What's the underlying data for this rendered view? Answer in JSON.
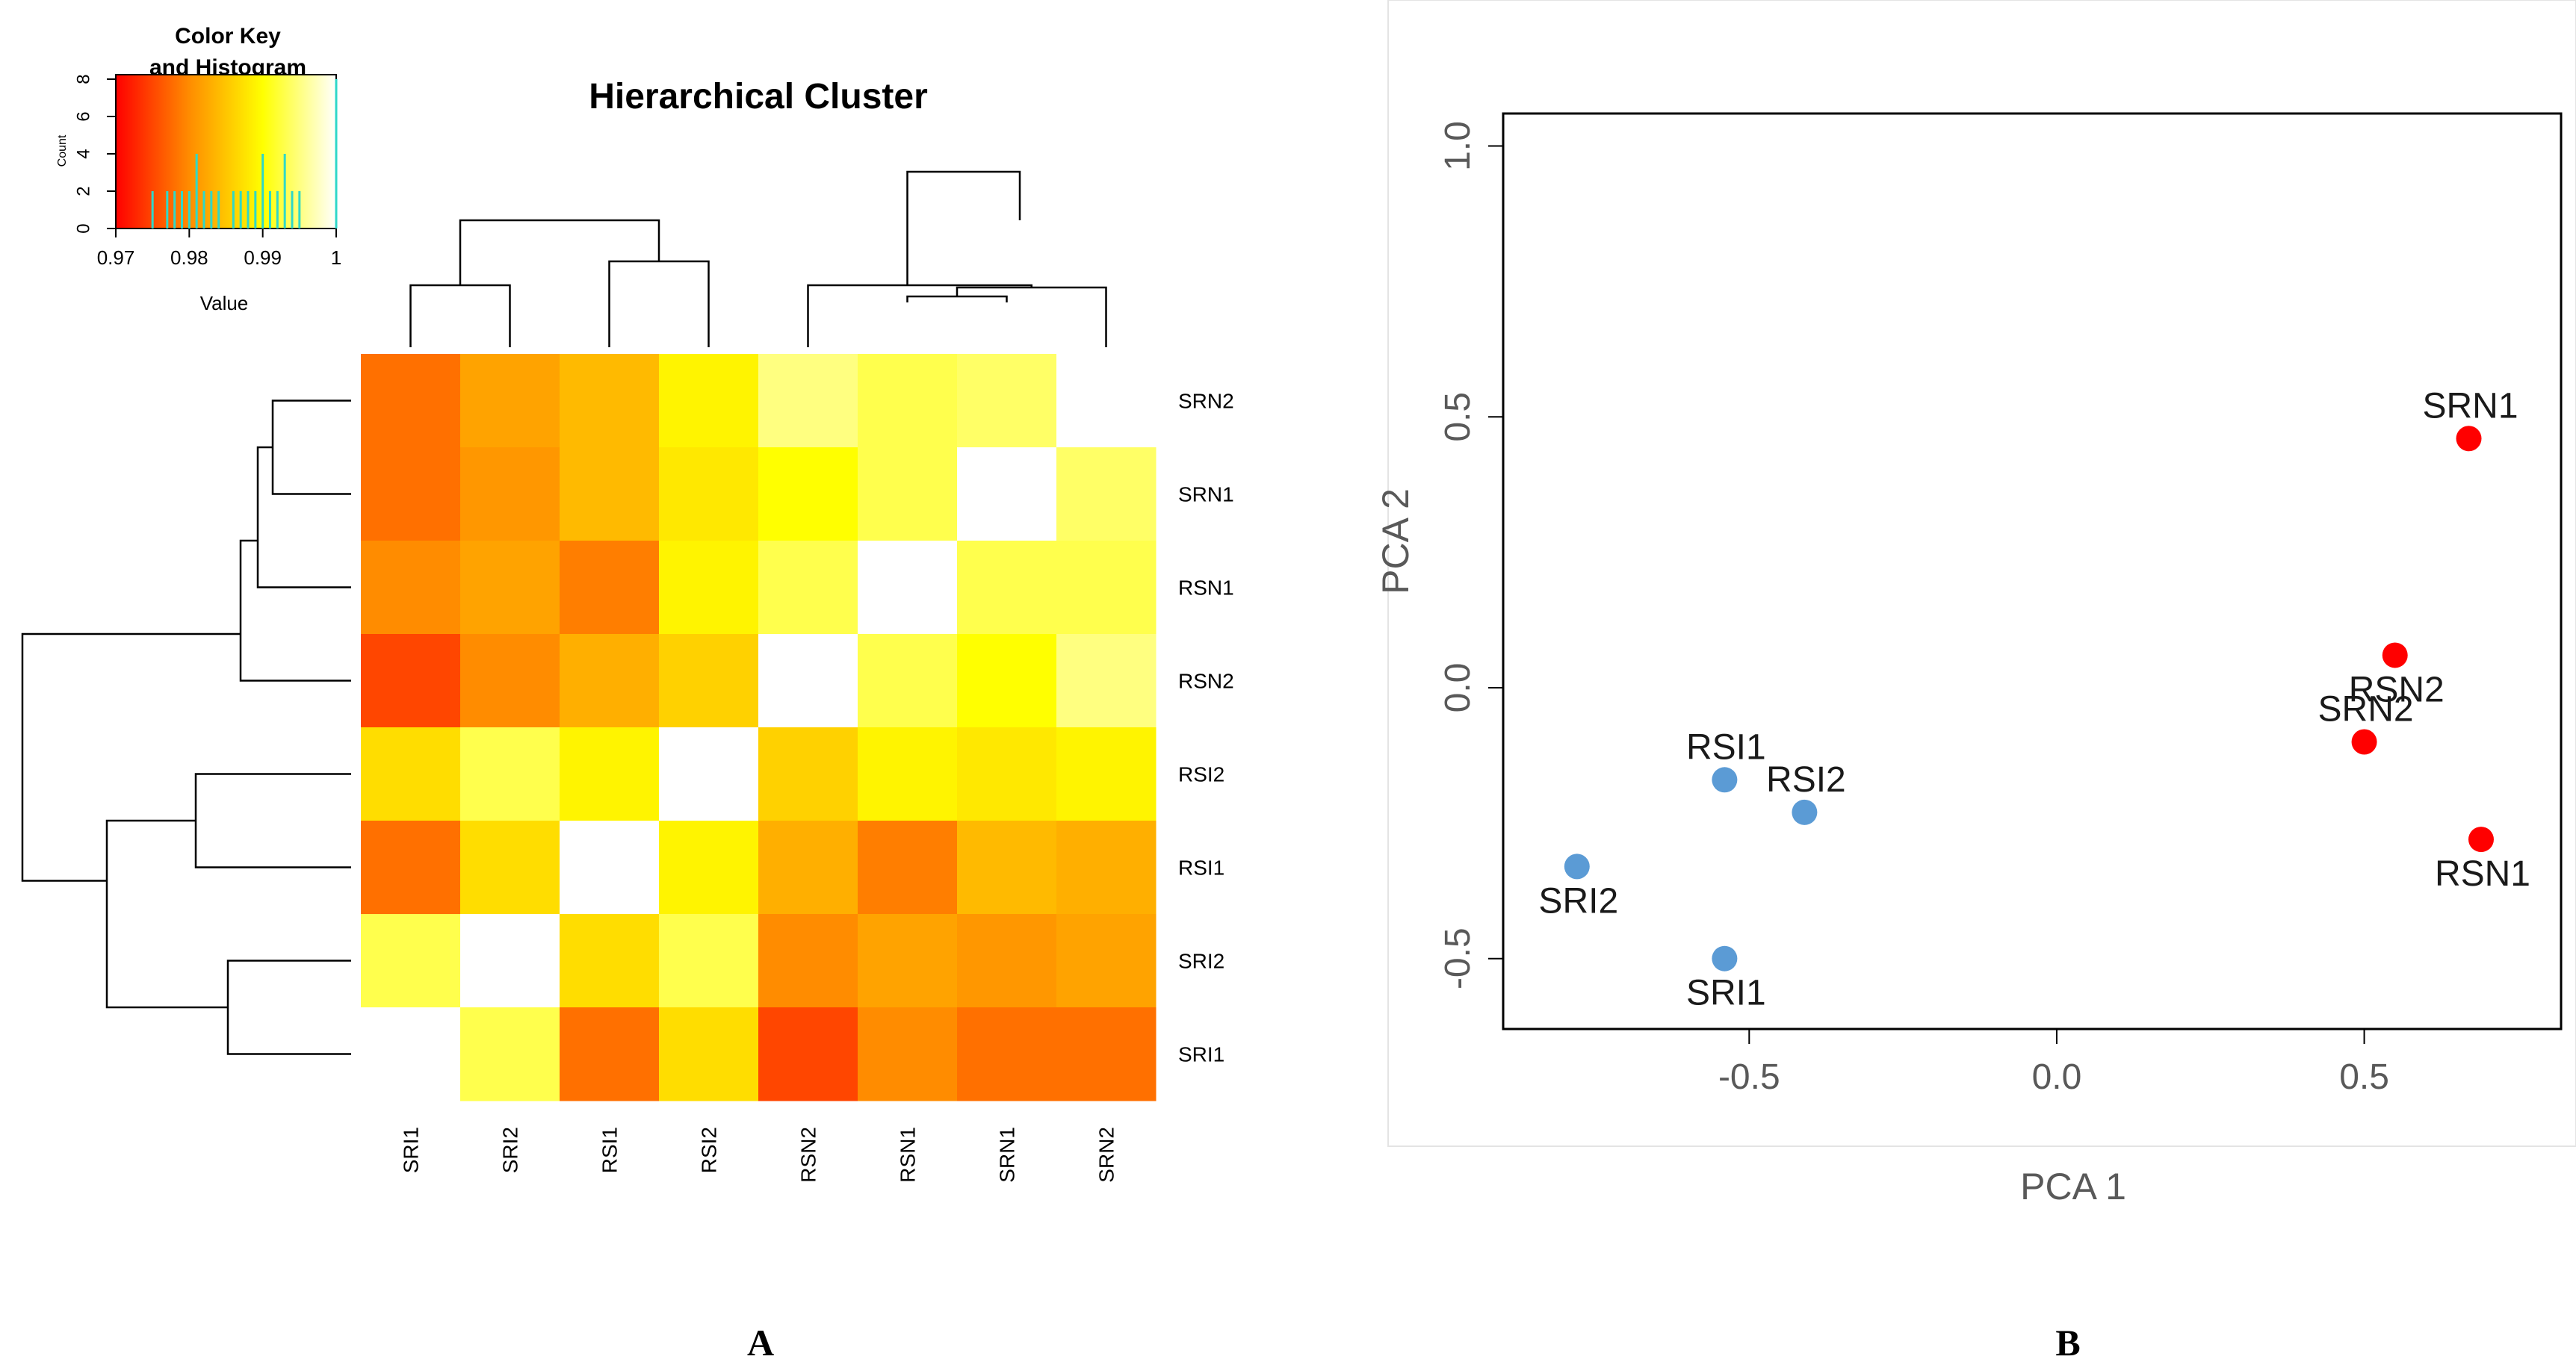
{
  "chart_data": [
    {
      "type": "heatmap",
      "title": "Hierarchical Cluster",
      "panel_label": "A",
      "rows": [
        "SRN2",
        "SRN1",
        "RSN1",
        "RSN2",
        "RSI2",
        "RSI1",
        "SRI2",
        "SRI1"
      ],
      "columns": [
        "SRI1",
        "SRI2",
        "RSI1",
        "RSI2",
        "RSN2",
        "RSN1",
        "SRN1",
        "SRN2"
      ],
      "values": [
        [
          0.978,
          0.982,
          0.984,
          0.989,
          0.995,
          0.993,
          0.994,
          1.0
        ],
        [
          0.978,
          0.981,
          0.984,
          0.988,
          0.99,
          0.993,
          1.0,
          0.994
        ],
        [
          0.98,
          0.982,
          0.979,
          0.989,
          0.993,
          1.0,
          0.993,
          0.993
        ],
        [
          0.975,
          0.98,
          0.983,
          0.986,
          1.0,
          0.993,
          0.99,
          0.995
        ],
        [
          0.987,
          0.993,
          0.989,
          1.0,
          0.986,
          0.989,
          0.988,
          0.989
        ],
        [
          0.978,
          0.987,
          1.0,
          0.989,
          0.983,
          0.979,
          0.984,
          0.983
        ],
        [
          0.993,
          1.0,
          0.987,
          0.993,
          0.98,
          0.982,
          0.981,
          0.982
        ],
        [
          1.0,
          0.993,
          0.978,
          0.987,
          0.975,
          0.98,
          0.978,
          0.978
        ]
      ],
      "color_key": {
        "title_line1": "Color Key",
        "title_line2": "and Histogram",
        "xlabel": "Value",
        "ylabel": "Count",
        "x_ticks": [
          "0.97",
          "0.98",
          "0.99",
          "1"
        ],
        "y_ticks": [
          "0",
          "2",
          "4",
          "6",
          "8"
        ],
        "range": [
          0.97,
          1.0
        ],
        "count_range": [
          0,
          8
        ],
        "colors": [
          "#ff0000",
          "#ff8c00",
          "#ffff00",
          "#ffffff"
        ],
        "histogram": [
          {
            "x": 0.975,
            "count": 2
          },
          {
            "x": 0.977,
            "count": 2
          },
          {
            "x": 0.978,
            "count": 2
          },
          {
            "x": 0.979,
            "count": 2
          },
          {
            "x": 0.98,
            "count": 2
          },
          {
            "x": 0.981,
            "count": 4
          },
          {
            "x": 0.982,
            "count": 2
          },
          {
            "x": 0.983,
            "count": 2
          },
          {
            "x": 0.984,
            "count": 2
          },
          {
            "x": 0.986,
            "count": 2
          },
          {
            "x": 0.987,
            "count": 2
          },
          {
            "x": 0.988,
            "count": 2
          },
          {
            "x": 0.989,
            "count": 2
          },
          {
            "x": 0.99,
            "count": 4
          },
          {
            "x": 0.991,
            "count": 2
          },
          {
            "x": 0.992,
            "count": 2
          },
          {
            "x": 0.993,
            "count": 4
          },
          {
            "x": 0.994,
            "count": 2
          },
          {
            "x": 0.995,
            "count": 2
          },
          {
            "x": 1.0,
            "count": 8
          }
        ]
      },
      "column_dendrogram": [
        {
          "merge": [
            "RSN1",
            "SRN1"
          ],
          "height": 0.15
        },
        {
          "merge": [
            "RSN1+SRN1",
            "SRN2"
          ],
          "height": 0.2
        },
        {
          "merge": [
            "RSN2",
            "RSN1+SRN1+SRN2"
          ],
          "height": 0.3
        },
        {
          "merge": [
            "SRI1",
            "SRI2"
          ],
          "height": 0.35
        },
        {
          "merge": [
            "RSI1",
            "RSI2"
          ],
          "height": 0.45
        },
        {
          "merge": [
            "SRI1+SRI2",
            "RSI1+RSI2"
          ],
          "height": 0.65
        },
        {
          "merge": [
            "SRI",
            "RSI",
            "RSN",
            "SRN"
          ],
          "height": 0.92
        }
      ],
      "row_dendrogram": [
        {
          "merge": [
            "SRN2",
            "SRN1"
          ],
          "height": 0.2
        },
        {
          "merge": [
            "SRN2+SRN1",
            "RSN1"
          ],
          "height": 0.25
        },
        {
          "merge": [
            "SRN2+SRN1+RSN1",
            "RSN2"
          ],
          "height": 0.32
        },
        {
          "merge": [
            "RSI2",
            "RSI1"
          ],
          "height": 0.5
        },
        {
          "merge": [
            "SRI2",
            "SRI1"
          ],
          "height": 0.4
        },
        {
          "merge": [
            "RSI",
            "SRI"
          ],
          "height": 0.75
        },
        {
          "merge": [
            "RSN",
            "SRN",
            "RSI",
            "SRI"
          ],
          "height": 1.0
        }
      ]
    },
    {
      "type": "scatter",
      "panel_label": "B",
      "xlabel": "PCA 1",
      "ylabel": "PCA 2",
      "xlim": [
        -0.9,
        0.82
      ],
      "ylim": [
        -0.63,
        1.06
      ],
      "x_ticks": [
        -0.5,
        0.0,
        0.5
      ],
      "x_tick_labels": [
        "-0.5",
        "0.0",
        "0.5"
      ],
      "y_ticks": [
        -0.5,
        0.0,
        0.5,
        1.0
      ],
      "y_tick_labels": [
        "-0.5",
        "0.0",
        "0.5",
        "1.0"
      ],
      "grid": false,
      "points": [
        {
          "label": "SRN1",
          "x": 0.67,
          "y": 0.46,
          "color": "#ff0000",
          "label_pos": "above"
        },
        {
          "label": "RSN2",
          "x": 0.55,
          "y": 0.06,
          "color": "#ff0000",
          "label_pos": "below"
        },
        {
          "label": "SRN2",
          "x": 0.5,
          "y": -0.1,
          "color": "#ff0000",
          "label_pos": "above"
        },
        {
          "label": "RSN1",
          "x": 0.69,
          "y": -0.28,
          "color": "#ff0000",
          "label_pos": "below"
        },
        {
          "label": "RSI1",
          "x": -0.54,
          "y": -0.17,
          "color": "#5b9bd5",
          "label_pos": "above"
        },
        {
          "label": "RSI2",
          "x": -0.41,
          "y": -0.23,
          "color": "#5b9bd5",
          "label_pos": "above"
        },
        {
          "label": "SRI2",
          "x": -0.78,
          "y": -0.33,
          "color": "#5b9bd5",
          "label_pos": "below"
        },
        {
          "label": "SRI1",
          "x": -0.54,
          "y": -0.5,
          "color": "#5b9bd5",
          "label_pos": "below"
        }
      ]
    }
  ]
}
